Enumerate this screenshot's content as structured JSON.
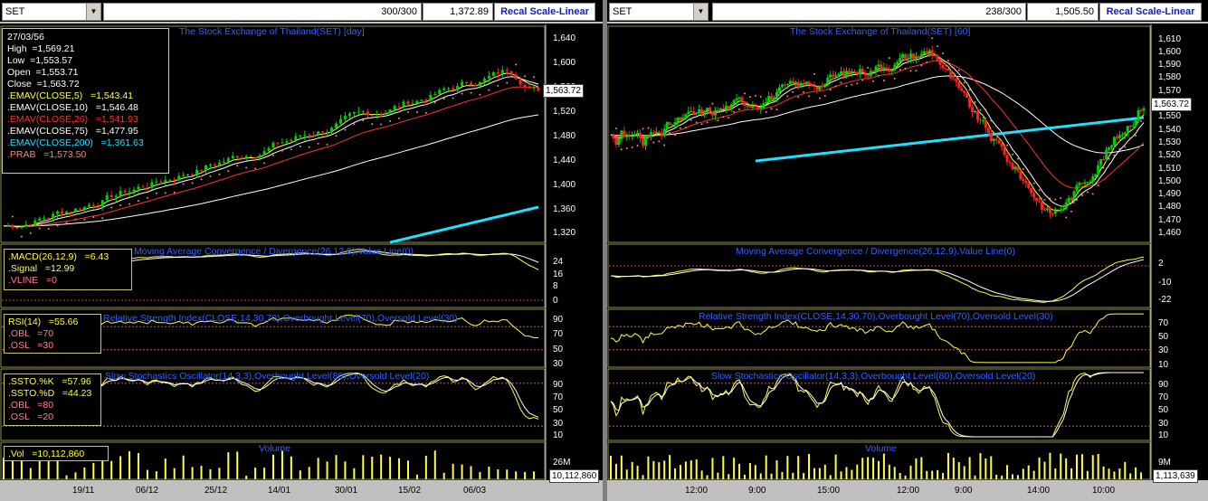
{
  "left": {
    "symbol": "SET",
    "count": "300/300",
    "last": "1,372.89",
    "button": "Recal Scale-Linear",
    "chart_title": "The Stock Exchange of Thailand(SET) [day]",
    "price_box": "1,563.72",
    "legend": {
      "date": "27/03/56",
      "high": "High  =1,569.21",
      "low": "Low  =1,553.57",
      "open": "Open  =1,553.71",
      "close": "Close  =1,563.72",
      "ema5": ".EMAV(CLOSE,5)   =1,543.41",
      "ema10": ".EMAV(CLOSE,10)   =1,546.48",
      "ema26": ".EMAV(CLOSE,26)   =1,541.93",
      "ema75": ".EMAV(CLOSE,75)   =1,477.95",
      "ema200": ".EMAV(CLOSE,200)   =1,361.63",
      "prab": ".PRAB   =1,573.50"
    },
    "price_axis": [
      "1,640",
      "1,600",
      "1,560",
      "1,520",
      "1,480",
      "1,440",
      "1,400",
      "1,360",
      "1,320"
    ],
    "macd": {
      "title": "Moving Average Convergence / Divergence(26,12,9),Value Line(0)",
      "macd": ".MACD(26,12,9)   =6.43",
      "signal": ".Signal   =12.99",
      "vline": ".VLINE   =0",
      "axis": [
        "24",
        "16",
        "8",
        "0"
      ]
    },
    "rsi": {
      "title": "Relative Strength Index(CLOSE,14,30,70),Overbought Level(70),Oversold Level(30)",
      "rsi": "RSI(14)   =55.66",
      "obl": ".OBL   =70",
      "osl": ".OSL   =30",
      "axis": [
        "90",
        "70",
        "50",
        "30"
      ]
    },
    "sto": {
      "title": "Slow Stochastics Oscillator(14,3,3),Overbought Level(80),Oversold Level(20)",
      "k": ".SSTO.%K   =57.96",
      "d": ".SSTO.%D   =44.23",
      "obl": ".OBL   =80",
      "osl": ".OSL   =20",
      "axis": [
        "90",
        "70",
        "50",
        "30",
        "10"
      ]
    },
    "volume": {
      "title": "Volume",
      "vol": ".Vol   =10,112,860",
      "axis": "26M",
      "box": "10,112,860"
    },
    "x_axis": [
      "19/11",
      "06/12",
      "25/12",
      "14/01",
      "30/01",
      "15/02",
      "06/03"
    ]
  },
  "right": {
    "symbol": "SET",
    "count": "238/300",
    "last": "1,505.50",
    "button": "Recal Scale-Linear",
    "chart_title": "The Stock Exchange of Thailand(SET) [60]",
    "price_box": "1,563.72",
    "price_axis": [
      "1,610",
      "1,600",
      "1,590",
      "1,580",
      "1,570",
      "1,560",
      "1,550",
      "1,540",
      "1,530",
      "1,520",
      "1,510",
      "1,500",
      "1,490",
      "1,480",
      "1,470",
      "1,460"
    ],
    "macd": {
      "title": "Moving Average Convergence / Divergence(26,12,9),Value Line(0)",
      "axis": [
        "2",
        "-10",
        "-22"
      ]
    },
    "rsi": {
      "title": "Relative Strength Index(CLOSE,14,30,70),Overbought Level(70),Oversold Level(30)",
      "axis": [
        "70",
        "50",
        "30",
        "10"
      ]
    },
    "sto": {
      "title": "Slow Stochastics Oscillator(14,3,3),Overbought Level(80),Oversold Level(20)",
      "axis": [
        "90",
        "70",
        "50",
        "30",
        "10"
      ]
    },
    "volume": {
      "title": "Volume",
      "axis": "9M",
      "box": "1,113,639"
    },
    "x_axis": [
      "12:00",
      "9:00",
      "15:00",
      "12:00",
      "9:00",
      "14:00",
      "10:00"
    ]
  },
  "colors": {
    "title_blue": "#3060ff",
    "up_candle": "#00d000",
    "down_candle": "#ff2020",
    "ema5": "#ffff40",
    "ema10": "#ffffff",
    "ema26": "#ff3030",
    "ema75": "#ffffff",
    "ema200": "#20e0ff",
    "sar": "#ff8080",
    "grid_line": "#ff6060",
    "panel_border": "#c8c870"
  }
}
